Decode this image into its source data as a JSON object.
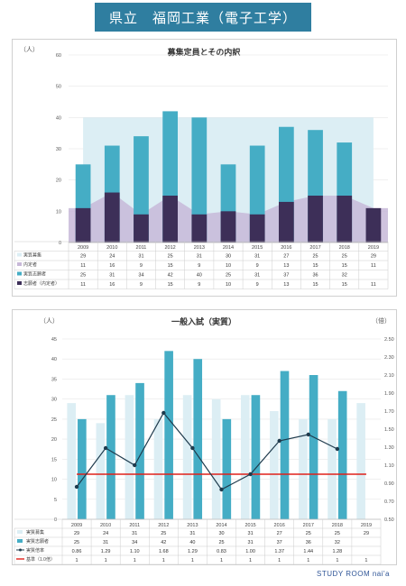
{
  "header": {
    "title": "県立　福岡工業（電子工学）"
  },
  "footer": {
    "text": "STUDY ROOM nai'a"
  },
  "colors": {
    "lightblue": "#dceef4",
    "teal": "#45adc5",
    "purple": "#c7b8d8",
    "navy": "#3d2f58",
    "darkline": "#1f3b4d",
    "red": "#e0201a"
  },
  "chart_data": [
    {
      "type": "bar",
      "title": "募集定員とその内訳",
      "ylabel": "（人）",
      "ylim": [
        0,
        60
      ],
      "yticks": [
        0,
        10,
        20,
        30,
        40,
        50,
        60
      ],
      "categories": [
        "2009",
        "2010",
        "2011",
        "2012",
        "2013",
        "2014",
        "2015",
        "2016",
        "2017",
        "2018",
        "2019"
      ],
      "capacity_band": 40,
      "series": [
        {
          "name": "実質募集",
          "values": [
            29,
            24,
            31,
            25,
            31,
            30,
            31,
            27,
            25,
            25,
            29
          ]
        },
        {
          "name": "内定者",
          "values": [
            11,
            16,
            9,
            15,
            9,
            10,
            9,
            13,
            15,
            15,
            11
          ]
        },
        {
          "name": "実質志願者",
          "values": [
            25,
            31,
            34,
            42,
            40,
            25,
            31,
            37,
            36,
            32,
            null
          ]
        },
        {
          "name": "志願者（内定者）",
          "values": [
            11,
            16,
            9,
            15,
            9,
            10,
            9,
            13,
            15,
            15,
            11
          ]
        }
      ],
      "table_rows": [
        [
          "29",
          "24",
          "31",
          "25",
          "31",
          "30",
          "31",
          "27",
          "25",
          "25",
          "29"
        ],
        [
          "11",
          "16",
          "9",
          "15",
          "9",
          "10",
          "9",
          "13",
          "15",
          "15",
          "11"
        ],
        [
          "25",
          "31",
          "34",
          "42",
          "40",
          "25",
          "31",
          "37",
          "36",
          "32",
          ""
        ],
        [
          "11",
          "16",
          "9",
          "15",
          "9",
          "10",
          "9",
          "13",
          "15",
          "15",
          "11"
        ]
      ]
    },
    {
      "type": "bar",
      "title": "一般入試（実質）",
      "ylabel": "（人）",
      "y2label": "（倍）",
      "ylim": [
        0,
        45
      ],
      "yticks": [
        0,
        5,
        10,
        15,
        20,
        25,
        30,
        35,
        40,
        45
      ],
      "y2lim": [
        0.5,
        2.5
      ],
      "y2ticks": [
        "0.50",
        "0.70",
        "0.90",
        "1.10",
        "1.30",
        "1.50",
        "1.70",
        "1.90",
        "2.10",
        "2.30",
        "2.50"
      ],
      "categories": [
        "2009",
        "2010",
        "2011",
        "2012",
        "2013",
        "2014",
        "2015",
        "2016",
        "2017",
        "2018",
        "2019"
      ],
      "series": [
        {
          "name": "実質募集",
          "values": [
            29,
            24,
            31,
            25,
            31,
            30,
            31,
            27,
            25,
            25,
            29
          ]
        },
        {
          "name": "実質志願者",
          "values": [
            25,
            31,
            34,
            42,
            40,
            25,
            31,
            37,
            36,
            32,
            null
          ]
        },
        {
          "name": "実質倍率",
          "values": [
            0.86,
            1.29,
            1.1,
            1.68,
            1.29,
            0.83,
            1.0,
            1.37,
            1.44,
            1.28,
            null
          ]
        },
        {
          "name": "基準（1.0倍）",
          "values": [
            1,
            1,
            1,
            1,
            1,
            1,
            1,
            1,
            1,
            1,
            1
          ]
        }
      ],
      "table_rows": [
        [
          "29",
          "24",
          "31",
          "25",
          "31",
          "30",
          "31",
          "27",
          "25",
          "25",
          "29"
        ],
        [
          "25",
          "31",
          "34",
          "42",
          "40",
          "25",
          "31",
          "37",
          "36",
          "32",
          ""
        ],
        [
          "0.86",
          "1.29",
          "1.10",
          "1.68",
          "1.29",
          "0.83",
          "1.00",
          "1.37",
          "1.44",
          "1.28",
          ""
        ],
        [
          "1",
          "1",
          "1",
          "1",
          "1",
          "1",
          "1",
          "1",
          "1",
          "1",
          "1"
        ]
      ]
    }
  ]
}
